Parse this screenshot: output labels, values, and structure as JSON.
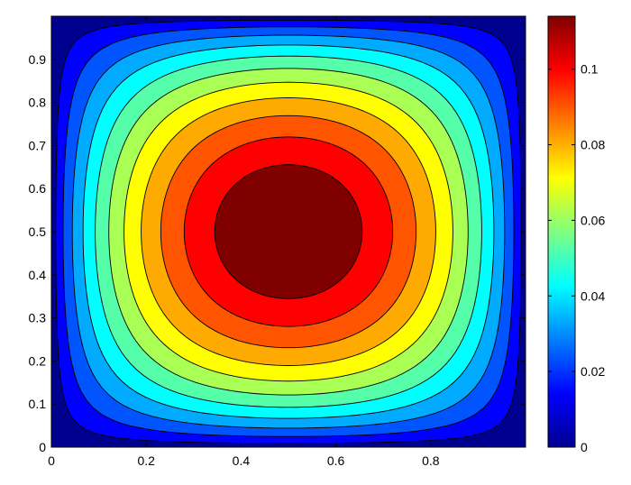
{
  "chart_data": {
    "type": "heatmap",
    "subtype": "filled-contour",
    "title": "",
    "xlabel": "",
    "ylabel": "",
    "xlim": [
      0,
      1
    ],
    "ylim": [
      0,
      1
    ],
    "x_ticks": [
      "0",
      "0.2",
      "0.4",
      "0.6",
      "0.8"
    ],
    "x_tick_values": [
      0,
      0.2,
      0.4,
      0.6,
      0.8
    ],
    "y_ticks": [
      "0",
      "0.1",
      "0.2",
      "0.3",
      "0.4",
      "0.5",
      "0.6",
      "0.7",
      "0.8",
      "0.9"
    ],
    "y_tick_values": [
      0,
      0.1,
      0.2,
      0.3,
      0.4,
      0.5,
      0.6,
      0.7,
      0.8,
      0.9
    ],
    "colorbar": {
      "range": [
        0,
        0.114
      ],
      "ticks": [
        "0",
        "0.02",
        "0.04",
        "0.06",
        "0.08",
        "0.1"
      ],
      "tick_values": [
        0,
        0.02,
        0.04,
        0.06,
        0.08,
        0.1
      ],
      "colormap": "jet"
    },
    "contour_levels": [
      0.0095,
      0.019,
      0.0285,
      0.038,
      0.0475,
      0.057,
      0.0665,
      0.076,
      0.0855,
      0.095,
      0.1045
    ],
    "peak": {
      "x": 0.5,
      "y": 0.5,
      "value": 0.114
    },
    "grid": false
  }
}
